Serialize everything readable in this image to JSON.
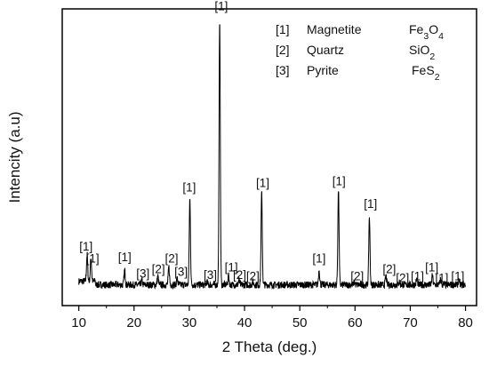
{
  "chart_data": {
    "type": "line",
    "title": "",
    "xlabel": "2 Theta (deg.)",
    "ylabel": "Intencity (a.u)",
    "xlim": [
      7,
      82
    ],
    "ylim": [
      0,
      1
    ],
    "xticks": [
      "10",
      "20",
      "30",
      "40",
      "50",
      "60",
      "70",
      "80"
    ],
    "xtick_values": [
      10,
      20,
      30,
      40,
      50,
      60,
      70,
      80
    ],
    "y_tick_labels_shown": false,
    "grid": false,
    "legend_position": "top-right",
    "legend": [
      {
        "index": "[1]",
        "name": "Magnetite",
        "formula": "Fe3O4"
      },
      {
        "index": "[2]",
        "name": "Quartz",
        "formula": "SiO2"
      },
      {
        "index": "[3]",
        "name": "Pyrite",
        "formula": "FeS2"
      }
    ],
    "baseline": 0.07,
    "noise_amplitude": 0.012,
    "peaks": [
      {
        "x": 11.5,
        "y": 0.16
      },
      {
        "x": 12.2,
        "y": 0.15
      },
      {
        "x": 18.3,
        "y": 0.12
      },
      {
        "x": 21.4,
        "y": 0.085
      },
      {
        "x": 24.3,
        "y": 0.1
      },
      {
        "x": 26.3,
        "y": 0.13
      },
      {
        "x": 27.8,
        "y": 0.09
      },
      {
        "x": 30.1,
        "y": 0.36
      },
      {
        "x": 33.2,
        "y": 0.08
      },
      {
        "x": 35.5,
        "y": 0.97
      },
      {
        "x": 37.1,
        "y": 0.1
      },
      {
        "x": 39.0,
        "y": 0.085
      },
      {
        "x": 41.5,
        "y": 0.08
      },
      {
        "x": 43.1,
        "y": 0.38
      },
      {
        "x": 53.5,
        "y": 0.12
      },
      {
        "x": 57.0,
        "y": 0.39
      },
      {
        "x": 59.9,
        "y": 0.08
      },
      {
        "x": 62.6,
        "y": 0.3
      },
      {
        "x": 65.6,
        "y": 0.1
      },
      {
        "x": 68.0,
        "y": 0.08
      },
      {
        "x": 71.2,
        "y": 0.09
      },
      {
        "x": 74.0,
        "y": 0.1
      },
      {
        "x": 75.5,
        "y": 0.09
      },
      {
        "x": 78.8,
        "y": 0.085
      }
    ],
    "annotations": [
      {
        "text": "[1]",
        "x": 11.3,
        "y": 0.185
      },
      {
        "text": "[1]",
        "x": 12.5,
        "y": 0.145
      },
      {
        "text": "[1]",
        "x": 18.3,
        "y": 0.15
      },
      {
        "text": "[3]",
        "x": 21.6,
        "y": 0.095
      },
      {
        "text": "[2]",
        "x": 24.4,
        "y": 0.11
      },
      {
        "text": "[2]",
        "x": 26.8,
        "y": 0.145
      },
      {
        "text": "[3]",
        "x": 28.5,
        "y": 0.1
      },
      {
        "text": "[1]",
        "x": 30.0,
        "y": 0.385
      },
      {
        "text": "[3]",
        "x": 33.8,
        "y": 0.09
      },
      {
        "text": "[1]",
        "x": 35.8,
        "y": 0.995
      },
      {
        "text": "[1]",
        "x": 37.6,
        "y": 0.115
      },
      {
        "text": "[2]",
        "x": 39.1,
        "y": 0.09
      },
      {
        "text": "[2]",
        "x": 41.5,
        "y": 0.085
      },
      {
        "text": "[1]",
        "x": 43.3,
        "y": 0.4
      },
      {
        "text": "[1]",
        "x": 53.5,
        "y": 0.145
      },
      {
        "text": "[1]",
        "x": 57.1,
        "y": 0.405
      },
      {
        "text": "[2]",
        "x": 60.4,
        "y": 0.085
      },
      {
        "text": "[1]",
        "x": 62.8,
        "y": 0.33
      },
      {
        "text": "[2]",
        "x": 66.2,
        "y": 0.11
      },
      {
        "text": "[2]",
        "x": 68.6,
        "y": 0.08
      },
      {
        "text": "[1]",
        "x": 71.3,
        "y": 0.085
      },
      {
        "text": "[1]",
        "x": 73.9,
        "y": 0.115
      },
      {
        "text": "[1]",
        "x": 75.7,
        "y": 0.08
      },
      {
        "text": "[1]",
        "x": 78.6,
        "y": 0.085
      }
    ]
  }
}
